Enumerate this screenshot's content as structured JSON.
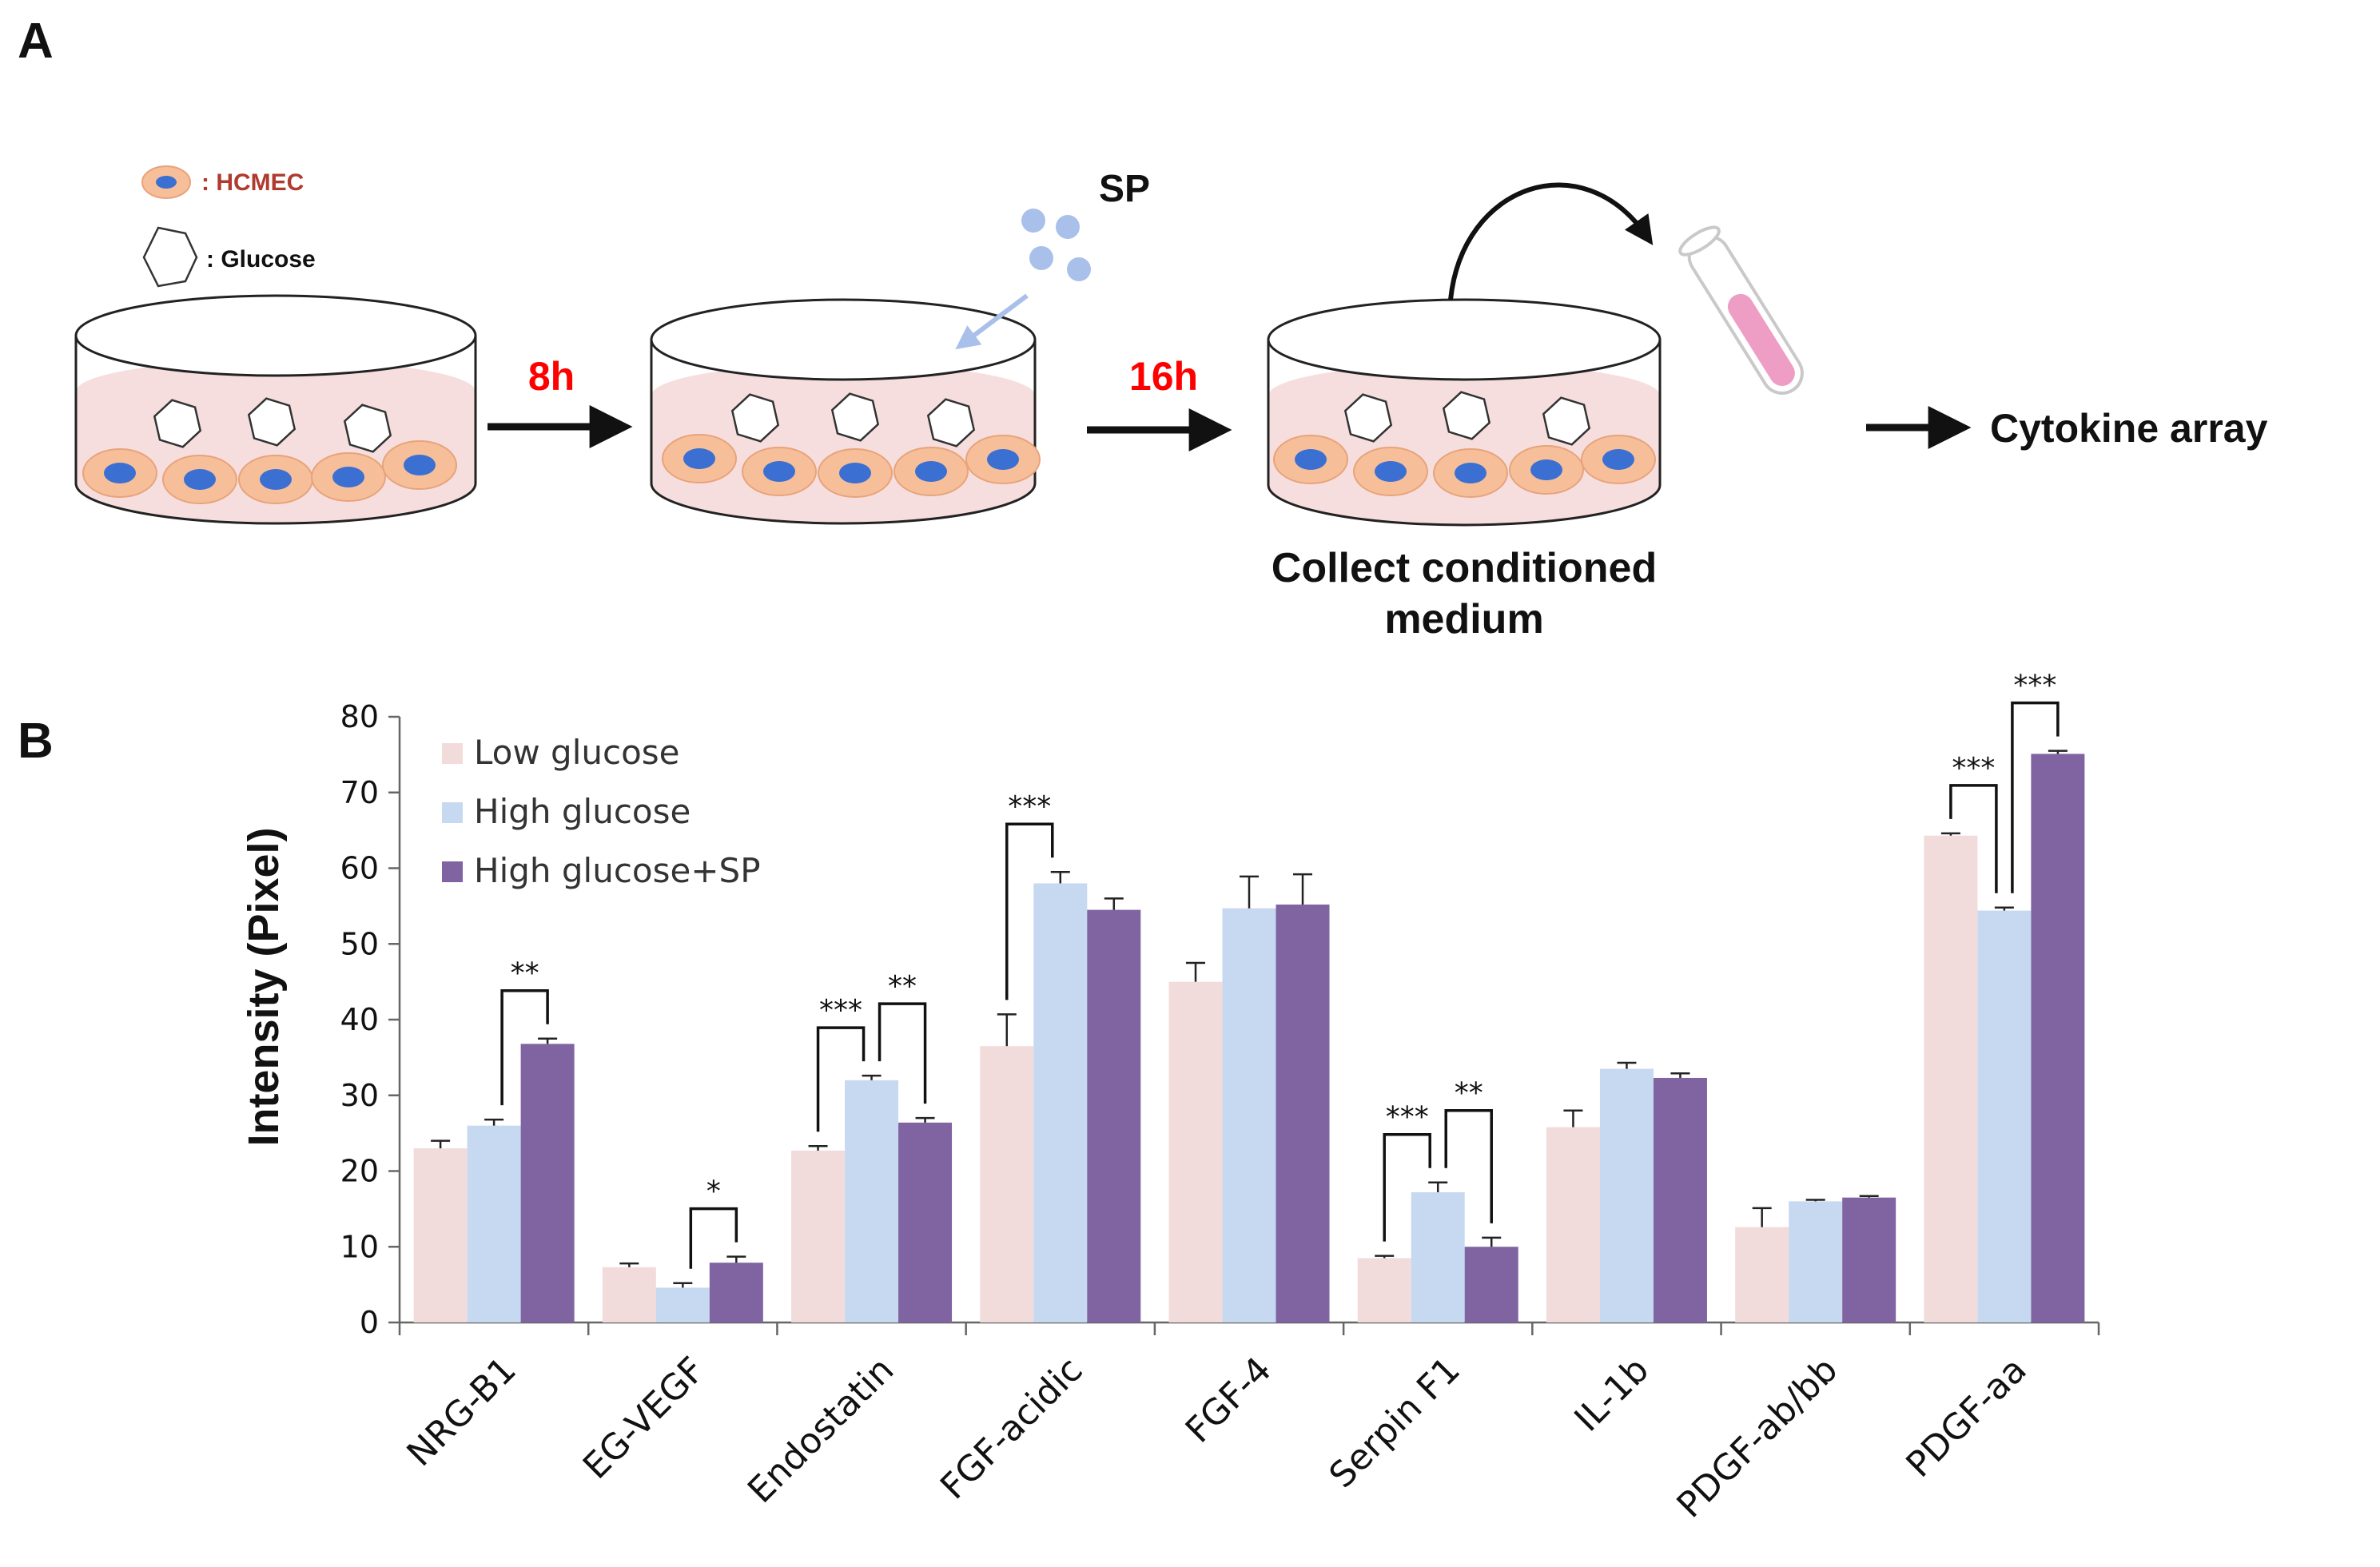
{
  "panel_a": {
    "label": "A",
    "legend": {
      "cell_label": ": HCMEC",
      "glucose_label": ": Glucose"
    },
    "step1_time": "8h",
    "step2_time": "16h",
    "sp_label": "SP",
    "collect_line1": "Collect conditioned",
    "collect_line2": "medium",
    "final_label": "Cytokine array",
    "colors": {
      "medium": "#f6dede",
      "cell": "#f6bf9a",
      "nucleus": "#3b6fd1",
      "sp": "#a9c0ea",
      "tube_fill": "#ee9ec4",
      "time": "#ff0000"
    }
  },
  "chart_data": {
    "type": "bar",
    "panel_label": "B",
    "ylabel": "Intensity  (Pixel)",
    "ylim": [
      0,
      80
    ],
    "yticks": [
      0,
      10,
      20,
      30,
      40,
      50,
      60,
      70,
      80
    ],
    "grid": false,
    "legend_position": "top-left",
    "categories": [
      "NRG-B1",
      "EG-VEGF",
      "Endostatin",
      "FGF-acidic",
      "FGF-4",
      "Serpin F1",
      "IL-1b",
      "PDGF-ab/bb",
      "PDGF-aa"
    ],
    "series": [
      {
        "name": "Low glucose",
        "color": "#f2dcdb",
        "values": [
          23,
          7.3,
          22.7,
          36.5,
          45,
          8.5,
          25.8,
          12.6,
          64.3
        ],
        "errors": [
          1.0,
          0.5,
          0.6,
          4.2,
          2.5,
          0.3,
          2.2,
          2.5,
          0.3
        ]
      },
      {
        "name": "High glucose",
        "color": "#c6d9f1",
        "values": [
          26,
          4.6,
          32,
          58,
          54.7,
          17.2,
          33.5,
          16,
          54.4
        ],
        "errors": [
          0.8,
          0.6,
          0.6,
          1.5,
          4.2,
          1.3,
          0.8,
          0.2,
          0.4
        ]
      },
      {
        "name": "High glucose+SP",
        "color": "#8064a2",
        "values": [
          36.8,
          7.9,
          26.4,
          54.5,
          55.2,
          10,
          32.3,
          16.5,
          75.1
        ],
        "errors": [
          0.7,
          0.8,
          0.6,
          1.5,
          4.0,
          1.2,
          0.6,
          0.2,
          0.4
        ]
      }
    ],
    "significance": [
      {
        "category": "NRG-B1",
        "from": 1,
        "to": 2,
        "label": "**"
      },
      {
        "category": "EG-VEGF",
        "from": 1,
        "to": 2,
        "label": "*"
      },
      {
        "category": "Endostatin",
        "from": 0,
        "to": 1,
        "label": "***"
      },
      {
        "category": "Endostatin",
        "from": 1,
        "to": 2,
        "label": "**"
      },
      {
        "category": "FGF-acidic",
        "from": 0,
        "to": 1,
        "label": "***"
      },
      {
        "category": "Serpin F1",
        "from": 0,
        "to": 1,
        "label": "***"
      },
      {
        "category": "Serpin F1",
        "from": 1,
        "to": 2,
        "label": "**"
      },
      {
        "category": "PDGF-aa",
        "from": 0,
        "to": 1,
        "label": "***"
      },
      {
        "category": "PDGF-aa",
        "from": 1,
        "to": 2,
        "label": "***"
      }
    ]
  }
}
